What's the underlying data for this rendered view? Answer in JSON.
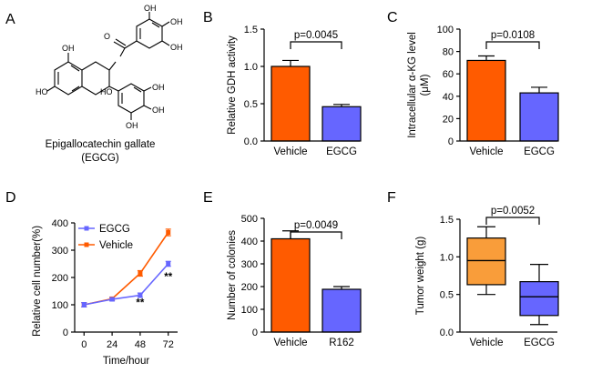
{
  "figure": {
    "panel_labels": [
      "A",
      "B",
      "C",
      "D",
      "E",
      "F"
    ],
    "molecule": {
      "name_line1": "Epigallocatechin gallate",
      "name_line2": "(EGCG)",
      "atoms": [
        "OH",
        "OH",
        "OH",
        "HO",
        "OH",
        "HO",
        "O",
        "OH",
        "OH",
        "OH"
      ]
    }
  },
  "colors": {
    "orange": "#FF5B00",
    "blue": "#6666FF",
    "box": "#F99D3A"
  },
  "chart_data": [
    {
      "id": "B",
      "type": "bar",
      "categories": [
        "Vehicle",
        "EGCG"
      ],
      "values": [
        1.0,
        0.46
      ],
      "errors": [
        0.08,
        0.03
      ],
      "ylabel": "Relative GDH activity",
      "ylim": [
        0.0,
        1.5
      ],
      "yticks": [
        "0.0",
        "0.5",
        "1.0",
        "1.5"
      ],
      "annotation": "p=0.0045"
    },
    {
      "id": "C",
      "type": "bar",
      "categories": [
        "Vehicle",
        "EGCG"
      ],
      "values": [
        72,
        43
      ],
      "errors": [
        4,
        5
      ],
      "ylabel_line1": "Intracellular α-KG level",
      "ylabel_line2": "(μM)",
      "ylim": [
        0,
        100
      ],
      "yticks": [
        "0",
        "20",
        "40",
        "60",
        "80",
        "100"
      ],
      "annotation": "p=0.0108"
    },
    {
      "id": "D",
      "type": "line",
      "x": [
        0,
        24,
        48,
        72
      ],
      "xticks": [
        "0",
        "24",
        "48",
        "72"
      ],
      "series": [
        {
          "name": "EGCG",
          "values": [
            100,
            120,
            135,
            250
          ],
          "errors": [
            8,
            6,
            8,
            9
          ]
        },
        {
          "name": "Vehicle",
          "values": [
            100,
            122,
            215,
            365
          ],
          "errors": [
            8,
            6,
            10,
            12
          ]
        }
      ],
      "xlabel": "Time/hour",
      "ylabel": "Relative cell number(%)",
      "ylim": [
        0,
        400
      ],
      "yticks": [
        "0",
        "100",
        "200",
        "300",
        "400"
      ],
      "significance": [
        {
          "x": 48,
          "label": "**"
        },
        {
          "x": 72,
          "label": "**"
        }
      ]
    },
    {
      "id": "E",
      "type": "bar",
      "categories": [
        "Vehicle",
        "R162"
      ],
      "values": [
        410,
        188
      ],
      "errors": [
        35,
        12
      ],
      "ylabel": "Number of colonies",
      "ylim": [
        0,
        500
      ],
      "yticks": [
        "0",
        "100",
        "200",
        "300",
        "400",
        "500"
      ],
      "annotation": "p=0.0049"
    },
    {
      "id": "F",
      "type": "box",
      "categories": [
        "Vehicle",
        "EGCG"
      ],
      "boxes": [
        {
          "min": 0.5,
          "q1": 0.63,
          "median": 0.95,
          "q3": 1.25,
          "max": 1.4
        },
        {
          "min": 0.1,
          "q1": 0.22,
          "median": 0.47,
          "q3": 0.67,
          "max": 0.9
        }
      ],
      "ylabel": "Tumor weight (g)",
      "ylim": [
        0.0,
        1.5
      ],
      "yticks": [
        "0.0",
        "0.5",
        "1.0",
        "1.5"
      ],
      "annotation": "p=0.0052"
    }
  ]
}
